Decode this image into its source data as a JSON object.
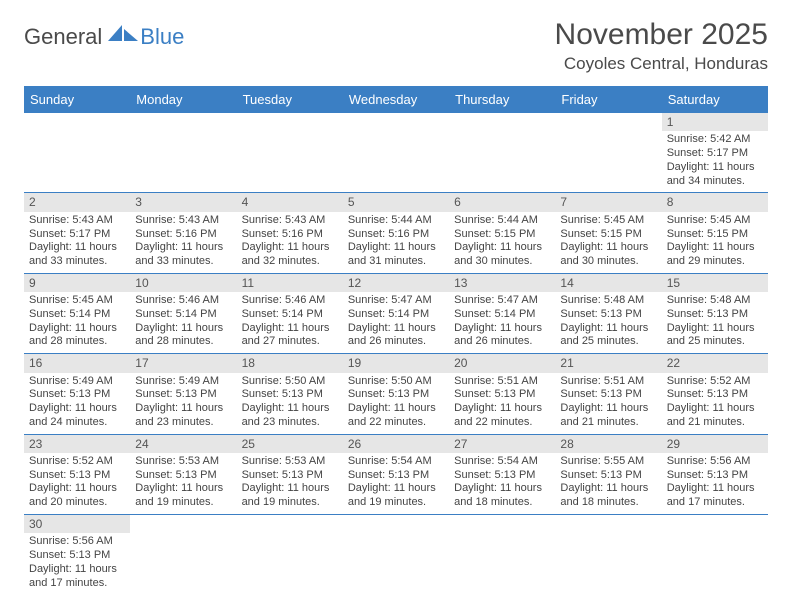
{
  "logo": {
    "part1": "General",
    "part2": "Blue"
  },
  "title": "November 2025",
  "location": "Coyoles Central, Honduras",
  "colors": {
    "header_bg": "#3b7fc4",
    "header_fg": "#ffffff",
    "daynum_bg": "#e6e6e6",
    "row_divider": "#3b7fc4",
    "text": "#444444"
  },
  "weekdays": [
    "Sunday",
    "Monday",
    "Tuesday",
    "Wednesday",
    "Thursday",
    "Friday",
    "Saturday"
  ],
  "weeks": [
    [
      {
        "empty": true
      },
      {
        "empty": true
      },
      {
        "empty": true
      },
      {
        "empty": true
      },
      {
        "empty": true
      },
      {
        "empty": true
      },
      {
        "n": "1",
        "sunrise": "5:42 AM",
        "sunset": "5:17 PM",
        "dl1": "Daylight: 11 hours",
        "dl2": "and 34 minutes."
      }
    ],
    [
      {
        "n": "2",
        "sunrise": "5:43 AM",
        "sunset": "5:17 PM",
        "dl1": "Daylight: 11 hours",
        "dl2": "and 33 minutes."
      },
      {
        "n": "3",
        "sunrise": "5:43 AM",
        "sunset": "5:16 PM",
        "dl1": "Daylight: 11 hours",
        "dl2": "and 33 minutes."
      },
      {
        "n": "4",
        "sunrise": "5:43 AM",
        "sunset": "5:16 PM",
        "dl1": "Daylight: 11 hours",
        "dl2": "and 32 minutes."
      },
      {
        "n": "5",
        "sunrise": "5:44 AM",
        "sunset": "5:16 PM",
        "dl1": "Daylight: 11 hours",
        "dl2": "and 31 minutes."
      },
      {
        "n": "6",
        "sunrise": "5:44 AM",
        "sunset": "5:15 PM",
        "dl1": "Daylight: 11 hours",
        "dl2": "and 30 minutes."
      },
      {
        "n": "7",
        "sunrise": "5:45 AM",
        "sunset": "5:15 PM",
        "dl1": "Daylight: 11 hours",
        "dl2": "and 30 minutes."
      },
      {
        "n": "8",
        "sunrise": "5:45 AM",
        "sunset": "5:15 PM",
        "dl1": "Daylight: 11 hours",
        "dl2": "and 29 minutes."
      }
    ],
    [
      {
        "n": "9",
        "sunrise": "5:45 AM",
        "sunset": "5:14 PM",
        "dl1": "Daylight: 11 hours",
        "dl2": "and 28 minutes."
      },
      {
        "n": "10",
        "sunrise": "5:46 AM",
        "sunset": "5:14 PM",
        "dl1": "Daylight: 11 hours",
        "dl2": "and 28 minutes."
      },
      {
        "n": "11",
        "sunrise": "5:46 AM",
        "sunset": "5:14 PM",
        "dl1": "Daylight: 11 hours",
        "dl2": "and 27 minutes."
      },
      {
        "n": "12",
        "sunrise": "5:47 AM",
        "sunset": "5:14 PM",
        "dl1": "Daylight: 11 hours",
        "dl2": "and 26 minutes."
      },
      {
        "n": "13",
        "sunrise": "5:47 AM",
        "sunset": "5:14 PM",
        "dl1": "Daylight: 11 hours",
        "dl2": "and 26 minutes."
      },
      {
        "n": "14",
        "sunrise": "5:48 AM",
        "sunset": "5:13 PM",
        "dl1": "Daylight: 11 hours",
        "dl2": "and 25 minutes."
      },
      {
        "n": "15",
        "sunrise": "5:48 AM",
        "sunset": "5:13 PM",
        "dl1": "Daylight: 11 hours",
        "dl2": "and 25 minutes."
      }
    ],
    [
      {
        "n": "16",
        "sunrise": "5:49 AM",
        "sunset": "5:13 PM",
        "dl1": "Daylight: 11 hours",
        "dl2": "and 24 minutes."
      },
      {
        "n": "17",
        "sunrise": "5:49 AM",
        "sunset": "5:13 PM",
        "dl1": "Daylight: 11 hours",
        "dl2": "and 23 minutes."
      },
      {
        "n": "18",
        "sunrise": "5:50 AM",
        "sunset": "5:13 PM",
        "dl1": "Daylight: 11 hours",
        "dl2": "and 23 minutes."
      },
      {
        "n": "19",
        "sunrise": "5:50 AM",
        "sunset": "5:13 PM",
        "dl1": "Daylight: 11 hours",
        "dl2": "and 22 minutes."
      },
      {
        "n": "20",
        "sunrise": "5:51 AM",
        "sunset": "5:13 PM",
        "dl1": "Daylight: 11 hours",
        "dl2": "and 22 minutes."
      },
      {
        "n": "21",
        "sunrise": "5:51 AM",
        "sunset": "5:13 PM",
        "dl1": "Daylight: 11 hours",
        "dl2": "and 21 minutes."
      },
      {
        "n": "22",
        "sunrise": "5:52 AM",
        "sunset": "5:13 PM",
        "dl1": "Daylight: 11 hours",
        "dl2": "and 21 minutes."
      }
    ],
    [
      {
        "n": "23",
        "sunrise": "5:52 AM",
        "sunset": "5:13 PM",
        "dl1": "Daylight: 11 hours",
        "dl2": "and 20 minutes."
      },
      {
        "n": "24",
        "sunrise": "5:53 AM",
        "sunset": "5:13 PM",
        "dl1": "Daylight: 11 hours",
        "dl2": "and 19 minutes."
      },
      {
        "n": "25",
        "sunrise": "5:53 AM",
        "sunset": "5:13 PM",
        "dl1": "Daylight: 11 hours",
        "dl2": "and 19 minutes."
      },
      {
        "n": "26",
        "sunrise": "5:54 AM",
        "sunset": "5:13 PM",
        "dl1": "Daylight: 11 hours",
        "dl2": "and 19 minutes."
      },
      {
        "n": "27",
        "sunrise": "5:54 AM",
        "sunset": "5:13 PM",
        "dl1": "Daylight: 11 hours",
        "dl2": "and 18 minutes."
      },
      {
        "n": "28",
        "sunrise": "5:55 AM",
        "sunset": "5:13 PM",
        "dl1": "Daylight: 11 hours",
        "dl2": "and 18 minutes."
      },
      {
        "n": "29",
        "sunrise": "5:56 AM",
        "sunset": "5:13 PM",
        "dl1": "Daylight: 11 hours",
        "dl2": "and 17 minutes."
      }
    ],
    [
      {
        "n": "30",
        "sunrise": "5:56 AM",
        "sunset": "5:13 PM",
        "dl1": "Daylight: 11 hours",
        "dl2": "and 17 minutes."
      },
      {
        "empty": true
      },
      {
        "empty": true
      },
      {
        "empty": true
      },
      {
        "empty": true
      },
      {
        "empty": true
      },
      {
        "empty": true
      }
    ]
  ]
}
